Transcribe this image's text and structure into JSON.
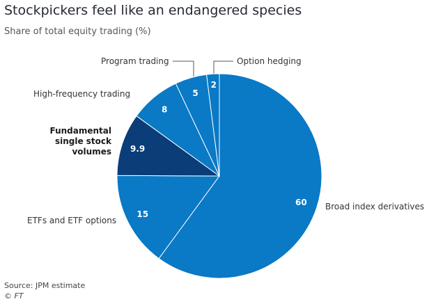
{
  "chart_data": {
    "type": "pie",
    "title": "Stockpickers feel like an endangered species",
    "subtitle": "Share of total equity trading (%)",
    "categories": [
      "Broad index derivatives",
      "ETFs and ETF options",
      "Fundamental single stock volumes",
      "High-frequency trading",
      "Program trading",
      "Option hedging"
    ],
    "values": [
      60,
      15,
      9.9,
      8,
      5,
      2
    ],
    "colors": [
      "#0a79c6",
      "#0a79c6",
      "#0b3d78",
      "#0a79c6",
      "#0a79c6",
      "#0a79c6"
    ],
    "source": "Source: JPM estimate",
    "credit": "© FT"
  }
}
